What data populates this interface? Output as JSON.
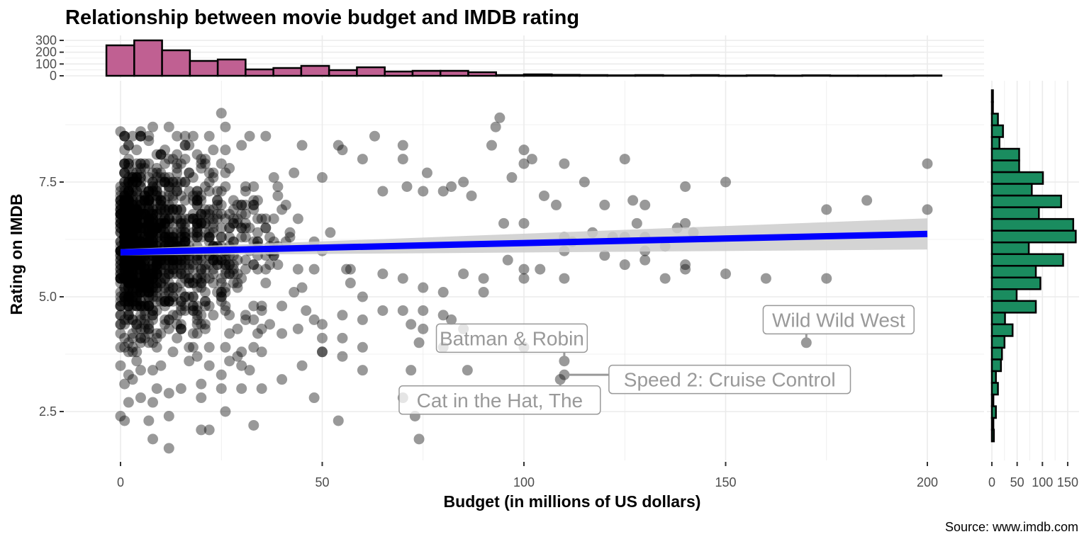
{
  "chart_data": {
    "type": "scatter",
    "title": "Relationship between movie budget and IMDB rating",
    "xlabel": "Budget (in millions of US dollars)",
    "ylabel": "Rating on IMDB",
    "caption": "Source: www.imdb.com",
    "xlim": [
      -7,
      212
    ],
    "ylim": [
      1.2,
      9.9
    ],
    "x_ticks": [
      0,
      50,
      100,
      150,
      200
    ],
    "x_tick_labels": [
      "0",
      "50",
      "100",
      "150",
      "200"
    ],
    "y_ticks": [
      2.5,
      5.0,
      7.5
    ],
    "y_tick_labels": [
      "2.5",
      "5.0",
      "7.5"
    ],
    "grid": true,
    "point_color": "#000000",
    "point_alpha": 0.4,
    "smooth": {
      "method": "lm",
      "color": "#0000ff",
      "ribbon_color": "#cccccc",
      "x": [
        0,
        200
      ],
      "y": [
        5.97,
        6.37
      ],
      "ci_lower": [
        5.9,
        6.03
      ],
      "ci_upper": [
        6.04,
        6.71
      ]
    },
    "points": [
      [
        25,
        9.0
      ],
      [
        26,
        8.7
      ],
      [
        8,
        8.7
      ],
      [
        0,
        8.6
      ],
      [
        5,
        8.6
      ],
      [
        12,
        8.7
      ],
      [
        16,
        8.5
      ],
      [
        14,
        8.5
      ],
      [
        30,
        8.3
      ],
      [
        32,
        8.5
      ],
      [
        36,
        8.5
      ],
      [
        45,
        8.3
      ],
      [
        54,
        8.3
      ],
      [
        55,
        8.2
      ],
      [
        60,
        8.0
      ],
      [
        63,
        8.5
      ],
      [
        70,
        8.0
      ],
      [
        70,
        8.3
      ],
      [
        94,
        8.9
      ],
      [
        93,
        8.7
      ],
      [
        92,
        8.3
      ],
      [
        100,
        8.2
      ],
      [
        100,
        7.9
      ],
      [
        102,
        8.0
      ],
      [
        110,
        7.9
      ],
      [
        125,
        8.0
      ],
      [
        200,
        7.9
      ],
      [
        97,
        7.6
      ],
      [
        85,
        7.5
      ],
      [
        82,
        7.4
      ],
      [
        76,
        7.7
      ],
      [
        75,
        7.3
      ],
      [
        65,
        7.3
      ],
      [
        71,
        7.4
      ],
      [
        80,
        7.3
      ],
      [
        87,
        7.2
      ],
      [
        105,
        7.2
      ],
      [
        115,
        7.5
      ],
      [
        140,
        7.4
      ],
      [
        150,
        7.5
      ],
      [
        185,
        7.1
      ],
      [
        175,
        6.9
      ],
      [
        200,
        6.9
      ],
      [
        108,
        7.0
      ],
      [
        120,
        7.0
      ],
      [
        127,
        7.1
      ],
      [
        130,
        7.0
      ],
      [
        138,
        6.5
      ],
      [
        140,
        6.6
      ],
      [
        142,
        6.4
      ],
      [
        128,
        6.6
      ],
      [
        100,
        6.6
      ],
      [
        95,
        6.6
      ],
      [
        122,
        6.3
      ],
      [
        110,
        6.3
      ],
      [
        112,
        6.2
      ],
      [
        117,
        6.4
      ],
      [
        125,
        6.3
      ],
      [
        130,
        6.3
      ],
      [
        135,
        6.1
      ],
      [
        130,
        6.0
      ],
      [
        110,
        6.0
      ],
      [
        120,
        5.9
      ],
      [
        125,
        5.7
      ],
      [
        130,
        5.8
      ],
      [
        140,
        5.7
      ],
      [
        140,
        5.6
      ],
      [
        150,
        5.5
      ],
      [
        160,
        5.4
      ],
      [
        175,
        5.4
      ],
      [
        135,
        5.4
      ],
      [
        110,
        5.4
      ],
      [
        104,
        5.6
      ],
      [
        100,
        5.6
      ],
      [
        100,
        5.4
      ],
      [
        96,
        5.8
      ],
      [
        90,
        5.4
      ],
      [
        85,
        5.5
      ],
      [
        90,
        5.1
      ],
      [
        80,
        5.1
      ],
      [
        75,
        5.2
      ],
      [
        70,
        5.4
      ],
      [
        65,
        5.5
      ],
      [
        60,
        5.0
      ],
      [
        55,
        4.6
      ],
      [
        60,
        4.5
      ],
      [
        65,
        4.7
      ],
      [
        70,
        4.7
      ],
      [
        75,
        4.7
      ],
      [
        80,
        4.6
      ],
      [
        82,
        4.5
      ],
      [
        85,
        4.3
      ],
      [
        75,
        4.3
      ],
      [
        72,
        4.4
      ],
      [
        74,
        4.0
      ],
      [
        80,
        3.9
      ],
      [
        100,
        3.9
      ],
      [
        110,
        3.6
      ],
      [
        110,
        3.3
      ],
      [
        109,
        3.2
      ],
      [
        170,
        4.0
      ],
      [
        86,
        3.4
      ],
      [
        72,
        3.4
      ],
      [
        60,
        3.4
      ],
      [
        55,
        3.7
      ],
      [
        50,
        3.8
      ],
      [
        60,
        3.9
      ],
      [
        50,
        4.1
      ],
      [
        55,
        4.1
      ],
      [
        50,
        4.4
      ],
      [
        48,
        4.5
      ],
      [
        40,
        4.8
      ],
      [
        35,
        4.8
      ],
      [
        40,
        4.2
      ],
      [
        45,
        3.5
      ],
      [
        40,
        3.2
      ],
      [
        35,
        3.8
      ],
      [
        30,
        3.8
      ],
      [
        30,
        3.5
      ],
      [
        26,
        3.9
      ],
      [
        25,
        3.3
      ],
      [
        22,
        3.5
      ],
      [
        20,
        3.1
      ],
      [
        15,
        3.0
      ],
      [
        20,
        2.8
      ],
      [
        12,
        2.9
      ],
      [
        8,
        2.7
      ],
      [
        5,
        2.8
      ],
      [
        30,
        3.0
      ],
      [
        35,
        3.0
      ],
      [
        25,
        3.0
      ],
      [
        32,
        3.4
      ],
      [
        20,
        2.1
      ],
      [
        22,
        2.1
      ],
      [
        12,
        2.4
      ],
      [
        8,
        1.9
      ],
      [
        12,
        1.7
      ],
      [
        7,
        2.3
      ],
      [
        33,
        2.2
      ],
      [
        48,
        2.8
      ],
      [
        54,
        2.3
      ],
      [
        26,
        2.5
      ],
      [
        0,
        2.4
      ],
      [
        1,
        2.3
      ],
      [
        70,
        2.8
      ],
      [
        73,
        2.4
      ],
      [
        74,
        1.9
      ],
      [
        2,
        2.7
      ],
      [
        1,
        3.1
      ],
      [
        3,
        3.2
      ],
      [
        0,
        3.5
      ]
    ],
    "dense_cluster": {
      "description": "Dense overplotted cluster of ~1,400 films with budget 0–90M and rating 3–8.5",
      "x_range": [
        0,
        90
      ],
      "y_range": [
        3.0,
        8.5
      ],
      "center_rating": 6.1,
      "count": 1400
    },
    "annotations": [
      {
        "label": "Batman & Robin",
        "x": 110,
        "y": 3.6,
        "label_x": 97,
        "label_y": 4.1
      },
      {
        "label": "Speed 2: Cruise Control",
        "x": 110,
        "y": 3.3,
        "label_x": 151,
        "label_y": 3.2
      },
      {
        "label": "Cat in the Hat, The",
        "x": 109,
        "y": 3.2,
        "label_x": 94,
        "label_y": 2.75
      },
      {
        "label": "Wild Wild West",
        "x": 170,
        "y": 4.0,
        "label_x": 178,
        "label_y": 4.5
      }
    ],
    "top_histogram": {
      "type": "histogram",
      "variable": "budget",
      "fill": "#c06092",
      "outline": "#000000",
      "bin_width": 6.9,
      "bin_start": -3.5,
      "counts": [
        258,
        300,
        216,
        126,
        138,
        54,
        66,
        84,
        48,
        72,
        36,
        42,
        42,
        30,
        6,
        12,
        8,
        6,
        4,
        6,
        3,
        6,
        2,
        4,
        2,
        4,
        2,
        2,
        2,
        3
      ],
      "y_ticks": [
        0,
        100,
        200,
        300
      ],
      "y_tick_labels": [
        "0",
        "100",
        "200",
        "300"
      ],
      "ylim": [
        0,
        300
      ]
    },
    "right_histogram": {
      "type": "histogram",
      "variable": "rating",
      "fill": "#1a8c5f",
      "outline": "#000000",
      "bin_width": 0.255,
      "bins_top_rating_first": [
        9.5,
        9.25,
        9.0,
        8.75
      ],
      "counts_top_to_bottom": [
        1,
        1,
        12,
        22,
        15,
        54,
        54,
        101,
        79,
        137,
        93,
        161,
        166,
        73,
        141,
        87,
        96,
        49,
        87,
        26,
        41,
        25,
        20,
        18,
        8,
        12,
        3,
        8,
        3,
        4
      ],
      "x_ticks": [
        0,
        50,
        100,
        150
      ],
      "x_tick_labels": [
        "0",
        "50",
        "100",
        "150"
      ],
      "xlim": [
        0,
        170
      ]
    }
  }
}
